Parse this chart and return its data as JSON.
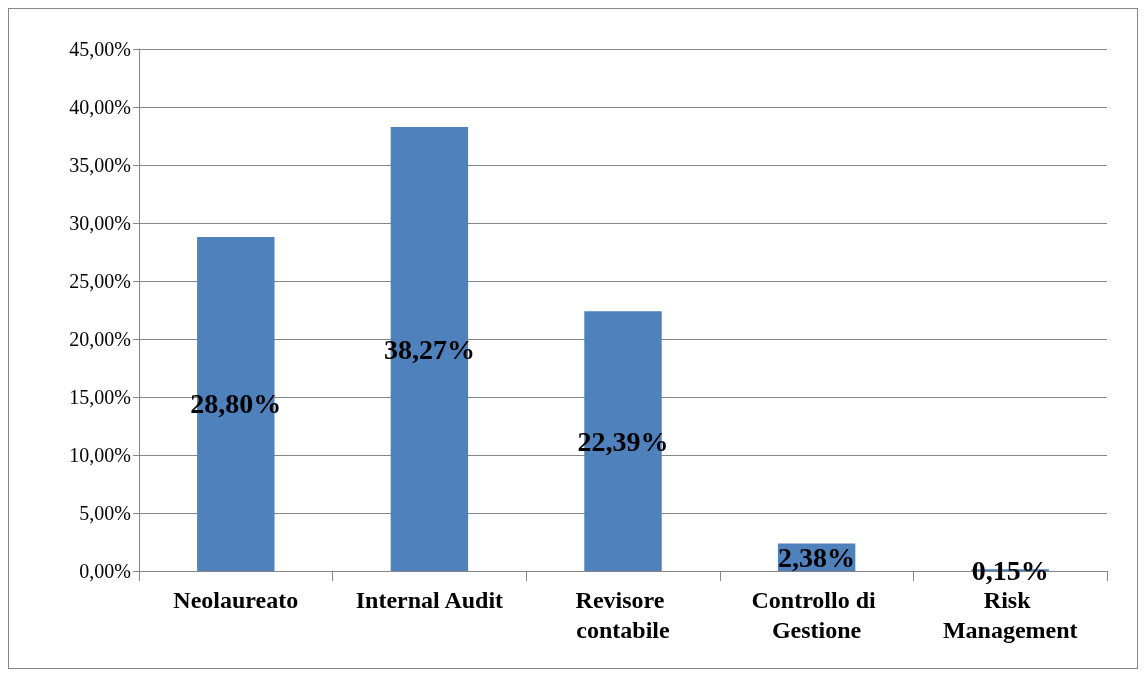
{
  "chart_data": {
    "type": "bar",
    "categories": [
      "Neolaureato",
      "Internal Audit",
      "Revisore contabile",
      "Controllo di Gestione",
      "Risk Management"
    ],
    "values": [
      28.8,
      38.27,
      22.39,
      2.38,
      0.15
    ],
    "value_labels": [
      "28,80%",
      "38,27%",
      "22,39%",
      "2,38%",
      "0,15%"
    ],
    "color": "#4f81bd",
    "ylim": [
      0,
      45
    ],
    "yticks": [
      {
        "value": 0,
        "label": "0,00%"
      },
      {
        "value": 5,
        "label": "5,00%"
      },
      {
        "value": 10,
        "label": "10,00%"
      },
      {
        "value": 15,
        "label": "15,00%"
      },
      {
        "value": 20,
        "label": "20,00%"
      },
      {
        "value": 25,
        "label": "25,00%"
      },
      {
        "value": 30,
        "label": "30,00%"
      },
      {
        "value": 35,
        "label": "35,00%"
      },
      {
        "value": 40,
        "label": "40,00%"
      },
      {
        "value": 45,
        "label": "45,00%"
      }
    ],
    "grid": true
  }
}
